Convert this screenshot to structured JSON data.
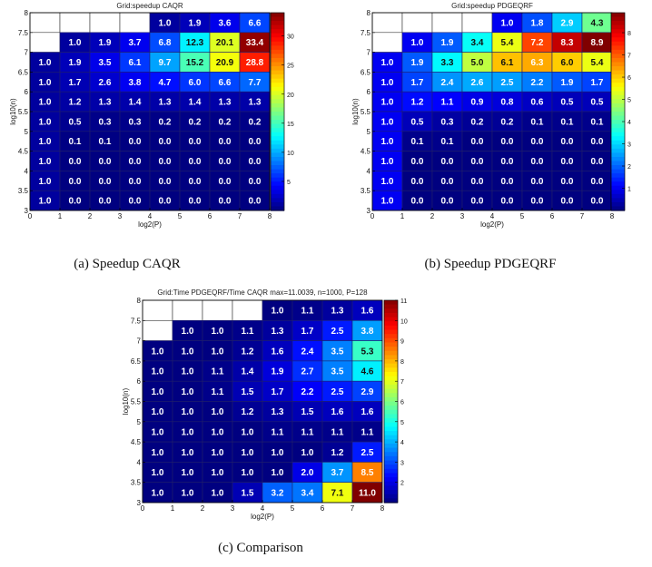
{
  "charts": [
    {
      "type": "heatmap",
      "title": "Grid:speedup CAQR",
      "caption": "(a) Speedup CAQR",
      "xlabel": "log2(P)",
      "ylabel": "log10(n)",
      "xlim": [
        0,
        8
      ],
      "ylim": [
        3,
        8
      ],
      "xticks": [
        "0",
        "1",
        "2",
        "3",
        "4",
        "5",
        "6",
        "7",
        "8"
      ],
      "yticks": [
        "3",
        "3.5",
        "4",
        "4.5",
        "5",
        "5.5",
        "6",
        "6.5",
        "7",
        "7.5",
        "8"
      ],
      "colorbar": {
        "min": 0,
        "max": 34,
        "ticks": [
          5,
          10,
          15,
          20,
          25,
          30
        ]
      },
      "rows": [
        [
          null,
          null,
          null,
          null,
          1.0,
          1.9,
          3.6,
          6.6
        ],
        [
          null,
          1.0,
          1.9,
          3.7,
          6.8,
          12.3,
          20.1,
          33.4
        ],
        [
          1.0,
          1.9,
          3.5,
          6.1,
          9.7,
          15.2,
          20.9,
          28.8
        ],
        [
          1.0,
          1.7,
          2.6,
          3.8,
          4.7,
          6.0,
          6.6,
          7.7
        ],
        [
          1.0,
          1.2,
          1.3,
          1.4,
          1.3,
          1.4,
          1.3,
          1.3
        ],
        [
          1.0,
          0.5,
          0.3,
          0.3,
          0.2,
          0.2,
          0.2,
          0.2
        ],
        [
          1.0,
          0.1,
          0.1,
          0.0,
          0.0,
          0.0,
          0.0,
          0.0
        ],
        [
          1.0,
          0.0,
          0.0,
          0.0,
          0.0,
          0.0,
          0.0,
          0.0
        ],
        [
          1.0,
          0.0,
          0.0,
          0.0,
          0.0,
          0.0,
          0.0,
          0.0
        ],
        [
          1.0,
          0.0,
          0.0,
          0.0,
          0.0,
          0.0,
          0.0,
          0.0
        ]
      ]
    },
    {
      "type": "heatmap",
      "title": "Grid:speedup PDGEQRF",
      "caption": "(b) Speedup PDGEQRF",
      "xlabel": "log2(P)",
      "ylabel": "log10(n)",
      "xlim": [
        0,
        8
      ],
      "ylim": [
        3,
        8
      ],
      "xticks": [
        "0",
        "1",
        "2",
        "3",
        "4",
        "5",
        "6",
        "7",
        "8"
      ],
      "yticks": [
        "3",
        "3.5",
        "4",
        "4.5",
        "5",
        "5.5",
        "6",
        "6.5",
        "7",
        "7.5",
        "8"
      ],
      "colorbar": {
        "min": 0,
        "max": 8.9,
        "ticks": [
          1,
          2,
          3,
          4,
          5,
          6,
          7,
          8
        ]
      },
      "rows": [
        [
          null,
          null,
          null,
          null,
          1.0,
          1.8,
          2.9,
          4.3
        ],
        [
          null,
          1.0,
          1.9,
          3.4,
          5.4,
          7.2,
          8.3,
          8.9
        ],
        [
          1.0,
          1.9,
          3.3,
          5.0,
          6.1,
          6.3,
          6.0,
          5.4
        ],
        [
          1.0,
          1.7,
          2.4,
          2.6,
          2.5,
          2.2,
          1.9,
          1.7
        ],
        [
          1.0,
          1.2,
          1.1,
          0.9,
          0.8,
          0.6,
          0.5,
          0.5
        ],
        [
          1.0,
          0.5,
          0.3,
          0.2,
          0.2,
          0.1,
          0.1,
          0.1
        ],
        [
          1.0,
          0.1,
          0.1,
          0.0,
          0.0,
          0.0,
          0.0,
          0.0
        ],
        [
          1.0,
          0.0,
          0.0,
          0.0,
          0.0,
          0.0,
          0.0,
          0.0
        ],
        [
          1.0,
          0.0,
          0.0,
          0.0,
          0.0,
          0.0,
          0.0,
          0.0
        ],
        [
          1.0,
          0.0,
          0.0,
          0.0,
          0.0,
          0.0,
          0.0,
          0.0
        ]
      ]
    },
    {
      "type": "heatmap",
      "title": "Grid:Time PDGEQRF/Time CAQR  max=11.0039, n=1000, P=128",
      "caption": "(c) Comparison",
      "xlabel": "log2(P)",
      "ylabel": "log10(n)",
      "xlim": [
        0,
        8
      ],
      "ylim": [
        3,
        8
      ],
      "xticks": [
        "0",
        "1",
        "2",
        "3",
        "4",
        "5",
        "6",
        "7",
        "8"
      ],
      "yticks": [
        "3",
        "3.5",
        "4",
        "4.5",
        "5",
        "5.5",
        "6",
        "6.5",
        "7",
        "7.5",
        "8"
      ],
      "colorbar": {
        "min": 1,
        "max": 11,
        "ticks": [
          2,
          3,
          4,
          5,
          6,
          7,
          8,
          9,
          10,
          11
        ]
      },
      "rows": [
        [
          null,
          null,
          null,
          null,
          1.0,
          1.1,
          1.3,
          1.6
        ],
        [
          null,
          1.0,
          1.0,
          1.1,
          1.3,
          1.7,
          2.5,
          3.8
        ],
        [
          1.0,
          1.0,
          1.0,
          1.2,
          1.6,
          2.4,
          3.5,
          5.3
        ],
        [
          1.0,
          1.0,
          1.1,
          1.4,
          1.9,
          2.7,
          3.5,
          4.6
        ],
        [
          1.0,
          1.0,
          1.1,
          1.5,
          1.7,
          2.2,
          2.5,
          2.9
        ],
        [
          1.0,
          1.0,
          1.0,
          1.2,
          1.3,
          1.5,
          1.6,
          1.6
        ],
        [
          1.0,
          1.0,
          1.0,
          1.0,
          1.1,
          1.1,
          1.1,
          1.1
        ],
        [
          1.0,
          1.0,
          1.0,
          1.0,
          1.0,
          1.0,
          1.2,
          2.5
        ],
        [
          1.0,
          1.0,
          1.0,
          1.0,
          1.0,
          2.0,
          3.7,
          8.5
        ],
        [
          1.0,
          1.0,
          1.0,
          1.5,
          3.2,
          3.4,
          7.1,
          11.0
        ]
      ]
    }
  ],
  "chart_data": [
    {
      "type": "heatmap",
      "title": "Grid:speedup CAQR",
      "x": [
        0.5,
        1.5,
        2.5,
        3.5,
        4.5,
        5.5,
        6.5,
        7.5
      ],
      "y": [
        7.75,
        7.25,
        6.75,
        6.25,
        5.75,
        5.25,
        4.75,
        4.25,
        3.75,
        3.25
      ],
      "xlabel": "log2(P)",
      "ylabel": "log10(n)",
      "xlim": [
        0,
        8
      ],
      "ylim": [
        3,
        8
      ]
    },
    {
      "type": "heatmap",
      "title": "Grid:speedup PDGEQRF",
      "x": [
        0.5,
        1.5,
        2.5,
        3.5,
        4.5,
        5.5,
        6.5,
        7.5
      ],
      "y": [
        7.75,
        7.25,
        6.75,
        6.25,
        5.75,
        5.25,
        4.75,
        4.25,
        3.75,
        3.25
      ],
      "xlabel": "log2(P)",
      "ylabel": "log10(n)",
      "xlim": [
        0,
        8
      ],
      "ylim": [
        3,
        8
      ]
    },
    {
      "type": "heatmap",
      "title": "Grid:Time PDGEQRF/Time CAQR  max=11.0039, n=1000, P=128",
      "x": [
        0.5,
        1.5,
        2.5,
        3.5,
        4.5,
        5.5,
        6.5,
        7.5
      ],
      "y": [
        7.75,
        7.25,
        6.75,
        6.25,
        5.75,
        5.25,
        4.75,
        4.25,
        3.75,
        3.25
      ],
      "xlabel": "log2(P)",
      "ylabel": "log10(n)",
      "xlim": [
        0,
        8
      ],
      "ylim": [
        3,
        8
      ]
    }
  ]
}
